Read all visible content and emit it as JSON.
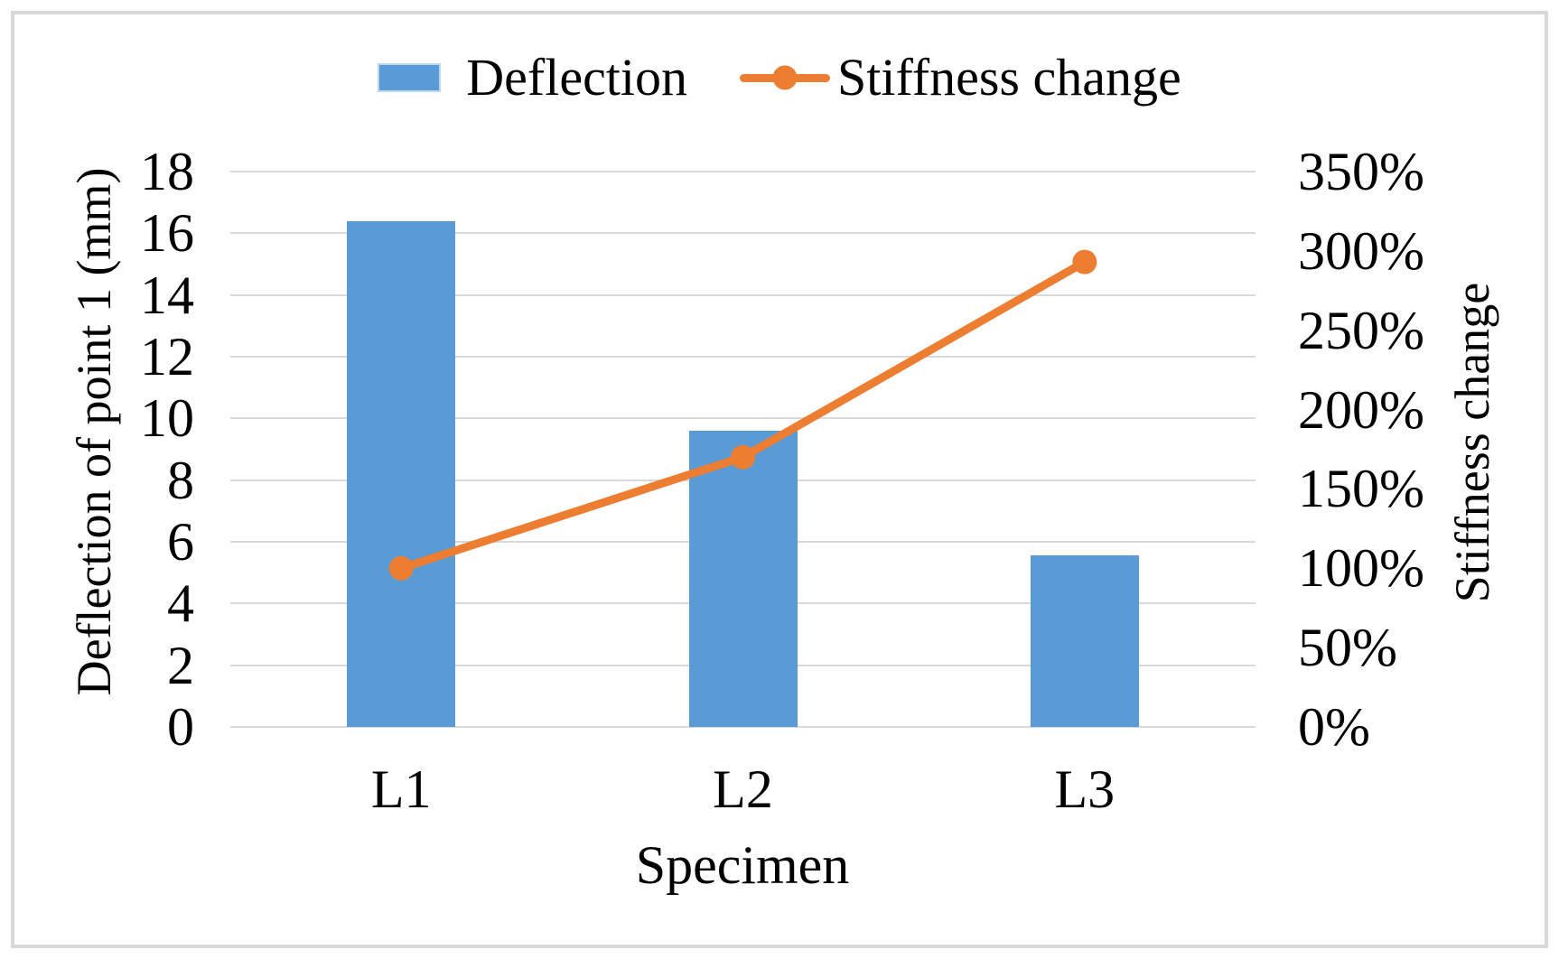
{
  "colors": {
    "bar": "#5B9BD5",
    "line": "#ED7D31",
    "gridline": "#D9D9D9",
    "frame_border": "#D9D9D9",
    "swatch_border": "#BDD7EE",
    "text": "#000000"
  },
  "legend": {
    "items": [
      {
        "label": "Deflection",
        "marker": "bar-swatch"
      },
      {
        "label": "Stiffness change",
        "marker": "line-with-dot"
      }
    ],
    "position": "top-center"
  },
  "chart_data": {
    "type": "combo",
    "subtypes": [
      "bar",
      "line"
    ],
    "categories": [
      "L1",
      "L2",
      "L3"
    ],
    "series": [
      {
        "name": "Deflection",
        "type": "bar",
        "axis": "left",
        "values": [
          16.4,
          9.6,
          5.55
        ]
      },
      {
        "name": "Stiffness change",
        "type": "line",
        "axis": "right",
        "values": [
          100,
          170,
          293
        ],
        "unit": "%"
      }
    ],
    "left_axis": {
      "label": "Deflection of point 1 (mm)",
      "min": 0,
      "max": 18,
      "step": 2,
      "ticks": [
        0,
        2,
        4,
        6,
        8,
        10,
        12,
        14,
        16,
        18
      ]
    },
    "right_axis": {
      "label": "Stiffness change",
      "min": 0,
      "max": 350,
      "step": 50,
      "suffix": "%",
      "ticks": [
        0,
        50,
        100,
        150,
        200,
        250,
        300,
        350
      ]
    },
    "x_axis": {
      "label": "Specimen"
    },
    "grid": true,
    "legend_position": "top"
  }
}
